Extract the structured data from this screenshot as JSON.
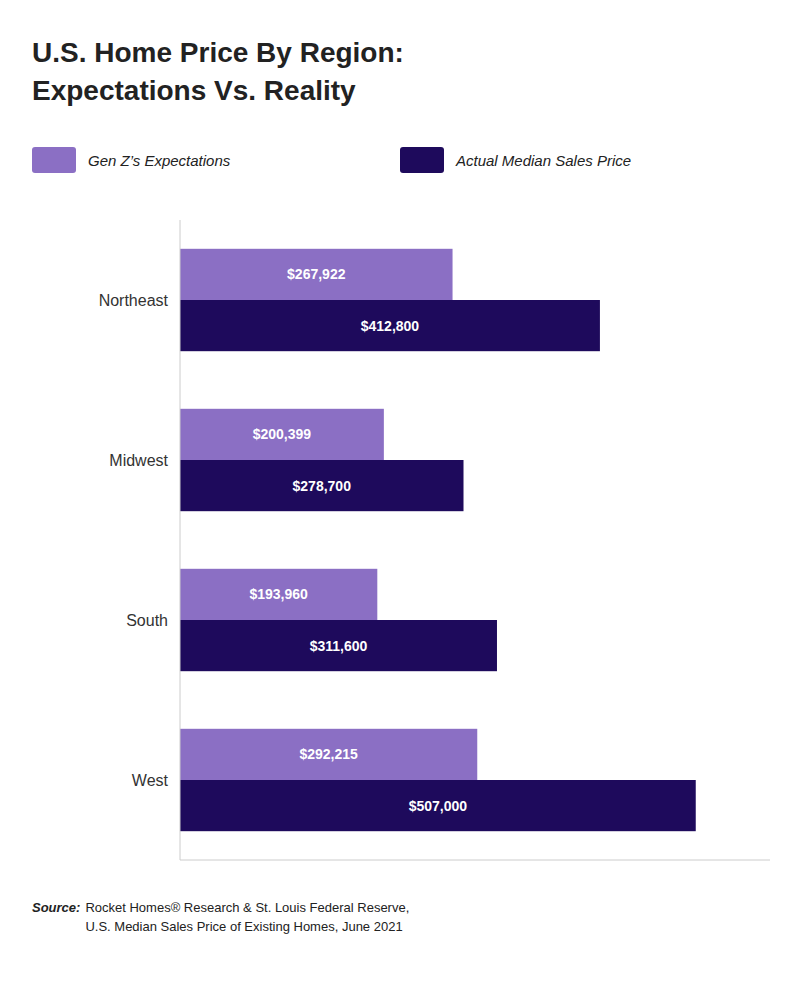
{
  "chart_data": {
    "type": "bar",
    "orientation": "horizontal",
    "title": "U.S. Home Price By Region:",
    "subtitle": "Expectations Vs. Reality",
    "categories": [
      "Northeast",
      "Midwest",
      "South",
      "West"
    ],
    "series": [
      {
        "name": "Gen Z’s Expectations",
        "color": "#8B6FC4",
        "values": [
          267922,
          200399,
          193960,
          292215
        ],
        "value_labels": [
          "$267,922",
          "$200,399",
          "$193,960",
          "$292,215"
        ]
      },
      {
        "name": "Actual Median Sales Price",
        "color": "#1E0A5C",
        "values": [
          412800,
          278700,
          311600,
          507000
        ],
        "value_labels": [
          "$412,800",
          "$278,700",
          "$311,600",
          "$507,000"
        ]
      }
    ],
    "xlim": [
      0,
      580000
    ],
    "data_labels": true,
    "tick_labels": "y",
    "legend": "top",
    "annotations": [
      "Source:",
      "Rocket Homes® Research & St. Louis Federal Reserve,\nU.S. Median Sales Price of Existing Homes, June 2021"
    ]
  }
}
